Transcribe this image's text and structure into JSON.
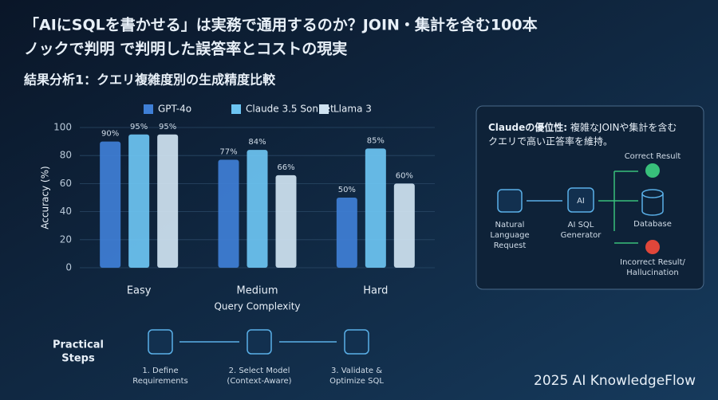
{
  "header": {
    "title_lines": [
      "「AIにSQLを書かせる」は実務で通用するのか？JOIN・集計を含む100本",
      "ノックで判明 で判明した誤答率とコストの現実"
    ],
    "subtitle": "結果分析1：クエリ複雑度別の生成精度比較"
  },
  "chart_data": {
    "type": "bar",
    "categories": [
      "Easy",
      "Medium",
      "Hard"
    ],
    "series": [
      {
        "name": "GPT-4o",
        "color": "#3f7fd6",
        "values": [
          90,
          77,
          50
        ],
        "value_labels": [
          "90%",
          "77%",
          "50%"
        ]
      },
      {
        "name": "Claude 3.5 Sonnet",
        "color": "#6cc4f2",
        "values": [
          95,
          84,
          85
        ],
        "value_labels": [
          "95%",
          "84%",
          "85%"
        ]
      },
      {
        "name": "Llama 3",
        "color": "#cfe3f1",
        "values": [
          95,
          66,
          60
        ],
        "value_labels": [
          "95%",
          "66%",
          "60%"
        ]
      }
    ],
    "ylim": [
      0,
      100
    ],
    "yticks": [
      0,
      20,
      40,
      60,
      80,
      100
    ],
    "grid": true,
    "x_label": "Query Complexity",
    "y_label": "Accuracy (%)",
    "legend": "top"
  },
  "callout": {
    "bold": "Claudeの優位性:",
    "lines": [
      "複雑なJOINや集計を含む",
      "クエリで高い正答率を維持。"
    ]
  },
  "diagram": {
    "nodes": [
      [
        "Natural",
        "Language",
        "Request"
      ],
      [
        "AI SQL",
        "Generator"
      ],
      [
        "Correct Result"
      ],
      [
        "Database"
      ],
      [
        "Incorrect Result/",
        "Hallucination"
      ]
    ]
  },
  "steps": {
    "title_lines": [
      "Practical",
      "Steps"
    ],
    "items": [
      [
        "1. Define",
        "Requirements"
      ],
      [
        "2. Select Model",
        "(Context-Aware)"
      ],
      [
        "3. Validate &",
        "Optimize SQL"
      ]
    ]
  },
  "footer": "2025 AI KnowledgeFlow"
}
